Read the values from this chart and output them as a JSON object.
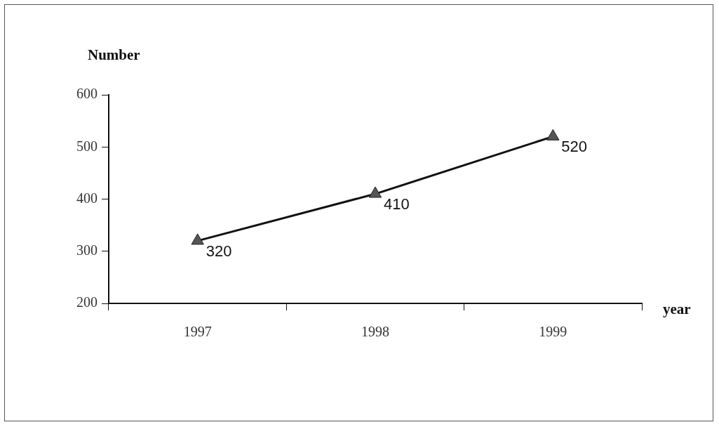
{
  "chart_data": {
    "type": "line",
    "xlabel": "year",
    "ylabel": "Number",
    "categories": [
      "1997",
      "1998",
      "1999"
    ],
    "series": [
      {
        "color": "#111111",
        "values": [
          320,
          410,
          520
        ]
      }
    ],
    "ylim": [
      200,
      600
    ],
    "yticks": [
      200,
      300,
      400,
      500,
      600
    ],
    "marker": "triangle",
    "line_style": "solid",
    "data_labels": true,
    "grid": false,
    "legend": false
  }
}
